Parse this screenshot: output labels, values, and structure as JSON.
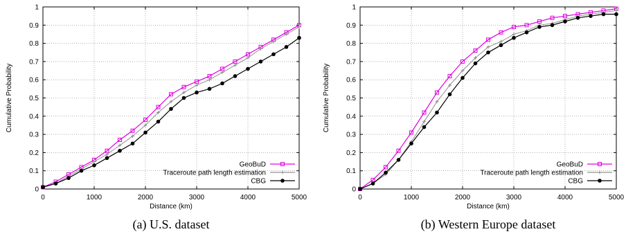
{
  "chart_data": [
    {
      "type": "line",
      "caption": "(a) U.S. dataset",
      "xlabel": "Distance (km)",
      "ylabel": "Cumulative Probability",
      "xlim": [
        0,
        5000
      ],
      "ylim": [
        0,
        1
      ],
      "xticks": [
        "0",
        "1000",
        "2000",
        "3000",
        "4000",
        "5000"
      ],
      "yticks": [
        "0",
        "0.1",
        "0.2",
        "0.3",
        "0.4",
        "0.5",
        "0.6",
        "0.7",
        "0.8",
        "0.9",
        "1"
      ],
      "grid": true,
      "legend_position": "bottom-right",
      "series": [
        {
          "name": "GeoBuD",
          "color": "#e000e0",
          "marker": "square",
          "x": [
            0,
            250,
            500,
            750,
            1000,
            1250,
            1500,
            1750,
            2000,
            2250,
            2500,
            2750,
            3000,
            3250,
            3500,
            3750,
            4000,
            4250,
            4500,
            4750,
            5000
          ],
          "y": [
            0.01,
            0.04,
            0.08,
            0.12,
            0.16,
            0.21,
            0.27,
            0.32,
            0.38,
            0.45,
            0.52,
            0.56,
            0.59,
            0.62,
            0.66,
            0.7,
            0.74,
            0.78,
            0.82,
            0.86,
            0.9
          ]
        },
        {
          "name": "Traceroute path length estimation",
          "color": "#909090",
          "marker": "plus",
          "x": [
            0,
            250,
            500,
            750,
            1000,
            1250,
            1500,
            1750,
            2000,
            2250,
            2500,
            2750,
            3000,
            3250,
            3500,
            3750,
            4000,
            4250,
            4500,
            4750,
            5000
          ],
          "y": [
            0.01,
            0.03,
            0.07,
            0.11,
            0.15,
            0.19,
            0.24,
            0.29,
            0.35,
            0.42,
            0.48,
            0.53,
            0.57,
            0.6,
            0.64,
            0.68,
            0.72,
            0.77,
            0.81,
            0.85,
            0.89
          ]
        },
        {
          "name": "CBG",
          "color": "#000000",
          "marker": "circle",
          "x": [
            0,
            250,
            500,
            750,
            1000,
            1250,
            1500,
            1750,
            2000,
            2250,
            2500,
            2750,
            3000,
            3250,
            3500,
            3750,
            4000,
            4250,
            4500,
            4750,
            5000
          ],
          "y": [
            0.01,
            0.03,
            0.06,
            0.1,
            0.13,
            0.17,
            0.21,
            0.25,
            0.31,
            0.37,
            0.44,
            0.5,
            0.53,
            0.55,
            0.58,
            0.62,
            0.66,
            0.7,
            0.74,
            0.78,
            0.83
          ]
        }
      ]
    },
    {
      "type": "line",
      "caption": "(b) Western Europe dataset",
      "xlabel": "Distance (km)",
      "ylabel": "Cumulative Probability",
      "xlim": [
        0,
        5000
      ],
      "ylim": [
        0,
        1
      ],
      "xticks": [
        "0",
        "1000",
        "2000",
        "3000",
        "4000",
        "5000"
      ],
      "yticks": [
        "0",
        "0.1",
        "0.2",
        "0.3",
        "0.4",
        "0.5",
        "0.6",
        "0.7",
        "0.8",
        "0.9",
        "1"
      ],
      "grid": true,
      "legend_position": "bottom-right",
      "series": [
        {
          "name": "GeoBuD",
          "color": "#e000e0",
          "marker": "square",
          "x": [
            0,
            250,
            500,
            750,
            1000,
            1250,
            1500,
            1750,
            2000,
            2250,
            2500,
            2750,
            3000,
            3250,
            3500,
            3750,
            4000,
            4250,
            4500,
            4750,
            5000
          ],
          "y": [
            0.0,
            0.05,
            0.12,
            0.21,
            0.31,
            0.42,
            0.53,
            0.62,
            0.7,
            0.76,
            0.82,
            0.86,
            0.89,
            0.9,
            0.92,
            0.94,
            0.95,
            0.96,
            0.97,
            0.98,
            0.99
          ]
        },
        {
          "name": "Traceroute path length estimation",
          "color": "#909090",
          "marker": "plus",
          "x": [
            0,
            250,
            500,
            750,
            1000,
            1250,
            1500,
            1750,
            2000,
            2250,
            2500,
            2750,
            3000,
            3250,
            3500,
            3750,
            4000,
            4250,
            4500,
            4750,
            5000
          ],
          "y": [
            0.0,
            0.03,
            0.08,
            0.16,
            0.26,
            0.37,
            0.48,
            0.57,
            0.65,
            0.72,
            0.78,
            0.81,
            0.85,
            0.87,
            0.9,
            0.91,
            0.93,
            0.95,
            0.96,
            0.97,
            0.98
          ]
        },
        {
          "name": "CBG",
          "color": "#000000",
          "marker": "circle",
          "x": [
            0,
            250,
            500,
            750,
            1000,
            1250,
            1500,
            1750,
            2000,
            2250,
            2500,
            2750,
            3000,
            3250,
            3500,
            3750,
            4000,
            4250,
            4500,
            4750,
            5000
          ],
          "y": [
            0.0,
            0.03,
            0.09,
            0.16,
            0.25,
            0.34,
            0.42,
            0.52,
            0.61,
            0.69,
            0.75,
            0.79,
            0.83,
            0.86,
            0.89,
            0.9,
            0.92,
            0.94,
            0.95,
            0.96,
            0.96
          ]
        }
      ]
    }
  ]
}
